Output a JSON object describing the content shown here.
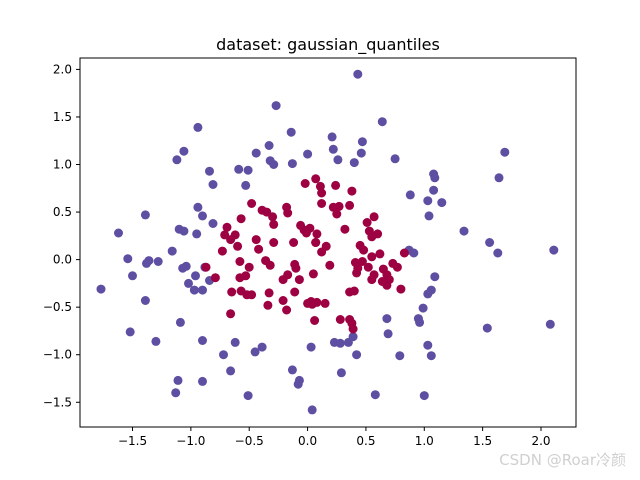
{
  "chart_data": {
    "type": "scatter",
    "title": "dataset: gaussian_quantiles",
    "xlabel": "",
    "ylabel": "",
    "xlim": [
      -1.95,
      2.3
    ],
    "ylim": [
      -1.76,
      2.12
    ],
    "xticks": [
      -1.5,
      -1.0,
      -0.5,
      0.0,
      0.5,
      1.0,
      1.5,
      2.0
    ],
    "xtick_labels": [
      "−1.5",
      "−1.0",
      "−0.5",
      "0.0",
      "0.5",
      "1.0",
      "1.5",
      "2.0"
    ],
    "yticks": [
      -1.5,
      -1.0,
      -0.5,
      0.0,
      0.5,
      1.0,
      1.5,
      2.0
    ],
    "ytick_labels": [
      "−1.5",
      "−1.0",
      "−0.5",
      "0.0",
      "0.5",
      "1.0",
      "1.5",
      "2.0"
    ],
    "grid": false,
    "series": [
      {
        "color": "#5e4fa2",
        "points": [
          [
            0.43,
            1.95
          ],
          [
            -0.27,
            1.62
          ],
          [
            -0.14,
            1.34
          ],
          [
            0.64,
            1.45
          ],
          [
            0.21,
            1.29
          ],
          [
            0.47,
            1.24
          ],
          [
            -0.94,
            1.39
          ],
          [
            -1.06,
            1.14
          ],
          [
            -1.12,
            1.05
          ],
          [
            -0.33,
            1.2
          ],
          [
            -0.44,
            1.12
          ],
          [
            -0.32,
            1.04
          ],
          [
            -0.29,
            1.0
          ],
          [
            -0.13,
            1.01
          ],
          [
            0.0,
            1.11
          ],
          [
            0.22,
            1.16
          ],
          [
            0.26,
            1.05
          ],
          [
            0.4,
            1.02
          ],
          [
            0.46,
            1.12
          ],
          [
            0.75,
            1.06
          ],
          [
            -0.84,
            0.93
          ],
          [
            -0.51,
            0.94
          ],
          [
            -0.59,
            0.95
          ],
          [
            -0.81,
            0.79
          ],
          [
            -0.53,
            0.78
          ],
          [
            1.08,
            0.9
          ],
          [
            1.09,
            0.86
          ],
          [
            1.69,
            1.13
          ],
          [
            1.64,
            0.86
          ],
          [
            0.88,
            0.68
          ],
          [
            1.03,
            0.62
          ],
          [
            1.08,
            0.73
          ],
          [
            1.15,
            0.6
          ],
          [
            1.04,
            0.46
          ],
          [
            -1.39,
            0.47
          ],
          [
            -0.94,
            0.55
          ],
          [
            -0.9,
            0.46
          ],
          [
            -0.81,
            0.38
          ],
          [
            -1.1,
            0.32
          ],
          [
            -1.06,
            0.3
          ],
          [
            -1.62,
            0.28
          ],
          [
            -0.95,
            0.27
          ],
          [
            1.34,
            0.3
          ],
          [
            1.56,
            0.18
          ],
          [
            1.63,
            0.07
          ],
          [
            2.11,
            0.1
          ],
          [
            0.87,
            0.1
          ],
          [
            0.91,
            0.07
          ],
          [
            -1.16,
            0.09
          ],
          [
            -1.54,
            0.01
          ],
          [
            -1.36,
            -0.01
          ],
          [
            -1.38,
            -0.04
          ],
          [
            -1.28,
            -0.02
          ],
          [
            -0.88,
            -0.08
          ],
          [
            -1.04,
            -0.07
          ],
          [
            -1.07,
            -0.09
          ],
          [
            -0.96,
            -0.17
          ],
          [
            -1.02,
            -0.25
          ],
          [
            -1.5,
            -0.17
          ],
          [
            -1.77,
            -0.31
          ],
          [
            -0.84,
            -0.22
          ],
          [
            -0.97,
            -0.32
          ],
          [
            -0.9,
            -0.32
          ],
          [
            -1.39,
            -0.43
          ],
          [
            -1.09,
            -0.66
          ],
          [
            -1.52,
            -0.76
          ],
          [
            -1.3,
            -0.86
          ],
          [
            -0.9,
            -0.85
          ],
          [
            -0.62,
            -0.87
          ],
          [
            -0.45,
            -0.97
          ],
          [
            -0.39,
            -0.92
          ],
          [
            -0.72,
            -1.0
          ],
          [
            0.03,
            -0.92
          ],
          [
            0.23,
            -0.87
          ],
          [
            0.28,
            -0.88
          ],
          [
            0.35,
            -0.87
          ],
          [
            0.39,
            -0.81
          ],
          [
            0.42,
            -1.0
          ],
          [
            1.09,
            -0.18
          ],
          [
            1.06,
            -0.32
          ],
          [
            1.03,
            -0.36
          ],
          [
            0.99,
            -0.51
          ],
          [
            0.95,
            -0.62
          ],
          [
            0.96,
            -0.66
          ],
          [
            1.03,
            -0.9
          ],
          [
            1.06,
            -1.01
          ],
          [
            0.79,
            -1.01
          ],
          [
            0.68,
            -0.62
          ],
          [
            0.69,
            -0.78
          ],
          [
            1.54,
            -0.72
          ],
          [
            2.08,
            -0.68
          ],
          [
            -0.66,
            -1.17
          ],
          [
            -0.13,
            -1.16
          ],
          [
            -0.07,
            -1.27
          ],
          [
            -0.08,
            -1.31
          ],
          [
            0.29,
            -1.19
          ],
          [
            0.58,
            -1.42
          ],
          [
            1.0,
            -1.43
          ],
          [
            -1.11,
            -1.27
          ],
          [
            -1.13,
            -1.4
          ],
          [
            -0.9,
            -1.28
          ],
          [
            -0.51,
            -1.43
          ],
          [
            0.04,
            -1.58
          ]
        ]
      },
      {
        "color": "#9e0142",
        "points": [
          [
            -0.02,
            0.8
          ],
          [
            0.07,
            0.85
          ],
          [
            0.12,
            0.7
          ],
          [
            0.24,
            0.78
          ],
          [
            0.11,
            0.77
          ],
          [
            0.38,
            0.72
          ],
          [
            -0.48,
            0.59
          ],
          [
            -0.57,
            0.43
          ],
          [
            -0.39,
            0.52
          ],
          [
            -0.35,
            0.5
          ],
          [
            -0.18,
            0.55
          ],
          [
            -0.17,
            0.49
          ],
          [
            -0.3,
            0.45
          ],
          [
            0.12,
            0.59
          ],
          [
            0.22,
            0.55
          ],
          [
            0.27,
            0.56
          ],
          [
            0.25,
            0.48
          ],
          [
            0.36,
            0.57
          ],
          [
            0.51,
            0.39
          ],
          [
            0.57,
            0.45
          ],
          [
            -0.69,
            0.34
          ],
          [
            -0.71,
            0.26
          ],
          [
            -0.66,
            0.21
          ],
          [
            -0.62,
            0.26
          ],
          [
            -0.29,
            0.37
          ],
          [
            -0.06,
            0.36
          ],
          [
            -0.03,
            0.31
          ],
          [
            -0.01,
            0.28
          ],
          [
            0.02,
            0.33
          ],
          [
            0.08,
            0.27
          ],
          [
            0.07,
            0.18
          ],
          [
            0.16,
            0.14
          ],
          [
            0.32,
            0.32
          ],
          [
            0.53,
            0.3
          ],
          [
            0.55,
            0.24
          ],
          [
            0.6,
            0.27
          ],
          [
            -0.73,
            0.09
          ],
          [
            -0.6,
            0.14
          ],
          [
            -0.44,
            0.21
          ],
          [
            -0.42,
            0.11
          ],
          [
            -0.29,
            0.18
          ],
          [
            -0.12,
            0.18
          ],
          [
            0.07,
            0.18
          ],
          [
            0.12,
            0.08
          ],
          [
            0.45,
            0.15
          ],
          [
            0.48,
            0.1
          ],
          [
            0.55,
            0.03
          ],
          [
            0.62,
            0.06
          ],
          [
            0.83,
            0.07
          ],
          [
            -0.87,
            -0.08
          ],
          [
            -0.58,
            -0.02
          ],
          [
            -0.5,
            -0.08
          ],
          [
            -0.36,
            -0.01
          ],
          [
            -0.32,
            -0.06
          ],
          [
            -0.11,
            -0.05
          ],
          [
            -0.1,
            -0.09
          ],
          [
            0.19,
            -0.06
          ],
          [
            0.41,
            -0.03
          ],
          [
            0.43,
            -0.09
          ],
          [
            0.47,
            -0.02
          ],
          [
            0.52,
            -0.08
          ],
          [
            0.65,
            -0.1
          ],
          [
            0.73,
            -0.04
          ],
          [
            0.77,
            -0.08
          ],
          [
            -0.79,
            -0.19
          ],
          [
            -0.58,
            -0.19
          ],
          [
            -0.53,
            -0.17
          ],
          [
            -0.21,
            -0.21
          ],
          [
            -0.17,
            -0.16
          ],
          [
            -0.07,
            -0.21
          ],
          [
            0.05,
            -0.15
          ],
          [
            0.42,
            -0.14
          ],
          [
            0.55,
            -0.21
          ],
          [
            0.57,
            -0.16
          ],
          [
            0.64,
            -0.23
          ],
          [
            0.68,
            -0.16
          ],
          [
            0.7,
            -0.21
          ],
          [
            0.8,
            -0.31
          ],
          [
            -0.65,
            -0.34
          ],
          [
            -0.57,
            -0.33
          ],
          [
            -0.52,
            -0.37
          ],
          [
            -0.48,
            -0.37
          ],
          [
            -0.33,
            -0.35
          ],
          [
            -0.11,
            -0.34
          ],
          [
            0.03,
            -0.44
          ],
          [
            0.08,
            -0.45
          ],
          [
            0.15,
            -0.46
          ],
          [
            0.36,
            -0.34
          ],
          [
            0.4,
            -0.33
          ],
          [
            0.68,
            -0.27
          ],
          [
            -0.34,
            -0.48
          ],
          [
            -0.21,
            -0.43
          ],
          [
            -0.18,
            -0.53
          ],
          [
            0.0,
            -0.46
          ],
          [
            0.04,
            -0.47
          ],
          [
            -0.66,
            -0.57
          ],
          [
            0.06,
            -0.64
          ],
          [
            0.28,
            -0.63
          ],
          [
            0.36,
            -0.63
          ],
          [
            0.38,
            -0.67
          ],
          [
            0.39,
            -0.73
          ]
        ]
      }
    ]
  },
  "watermark": "CSDN @Roar冷颜"
}
